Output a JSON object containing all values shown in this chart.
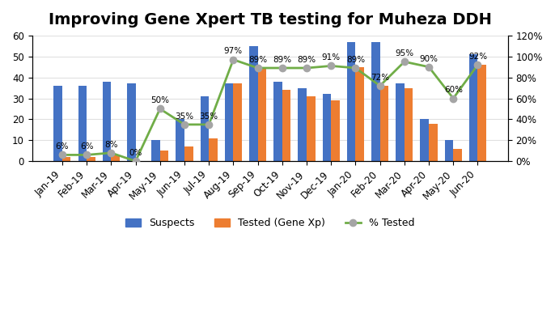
{
  "title": "Improving Gene Xpert TB testing for Muheza DDH",
  "categories": [
    "Jan-19",
    "Feb-19",
    "Mar-19",
    "Apr-19",
    "May-19",
    "Jun-19",
    "Jul-19",
    "Aug-19",
    "Sep-19",
    "Oct-19",
    "Nov-19",
    "Dec-19",
    "Jan-20",
    "Feb-20",
    "Mar-20",
    "Apr-20",
    "May-20",
    "Jun-20"
  ],
  "suspects": [
    36,
    36,
    38,
    37,
    10,
    20,
    31,
    37,
    55,
    38,
    35,
    32,
    57,
    57,
    37,
    20,
    10,
    51
  ],
  "tested": [
    2,
    2,
    3,
    0,
    5,
    7,
    11,
    37,
    45,
    34,
    31,
    29,
    45,
    36,
    35,
    18,
    6,
    46
  ],
  "pct_tested": [
    0.06,
    0.06,
    0.08,
    0.0,
    0.5,
    0.35,
    0.35,
    0.97,
    0.89,
    0.89,
    0.89,
    0.91,
    0.89,
    0.72,
    0.95,
    0.9,
    0.6,
    0.92
  ],
  "pct_labels": [
    "6%",
    "6%",
    "8%",
    "0%",
    "50%",
    "35%",
    "35%",
    "97%",
    "89%",
    "89%",
    "89%",
    "91%",
    "89%",
    "72%",
    "95%",
    "90%",
    "60%",
    "92%"
  ],
  "bar_color_suspects": "#4472C4",
  "bar_color_tested": "#ED7D31",
  "line_color": "#70AD47",
  "marker_color": "#A5A5A5",
  "ylim_left": [
    0,
    60
  ],
  "ylim_right": [
    0,
    1.2
  ],
  "yticks_left": [
    0,
    10,
    20,
    30,
    40,
    50,
    60
  ],
  "yticks_right": [
    0,
    0.2,
    0.4,
    0.6,
    0.8,
    1.0,
    1.2
  ],
  "ytick_right_labels": [
    "0%",
    "20%",
    "40%",
    "60%",
    "80%",
    "100%",
    "120%"
  ],
  "legend_labels": [
    "Suspects",
    "Tested (Gene Xp)",
    "% Tested"
  ],
  "background_color": "#FFFFFF",
  "title_fontsize": 14,
  "tick_fontsize": 8.5,
  "label_fontsize": 9
}
